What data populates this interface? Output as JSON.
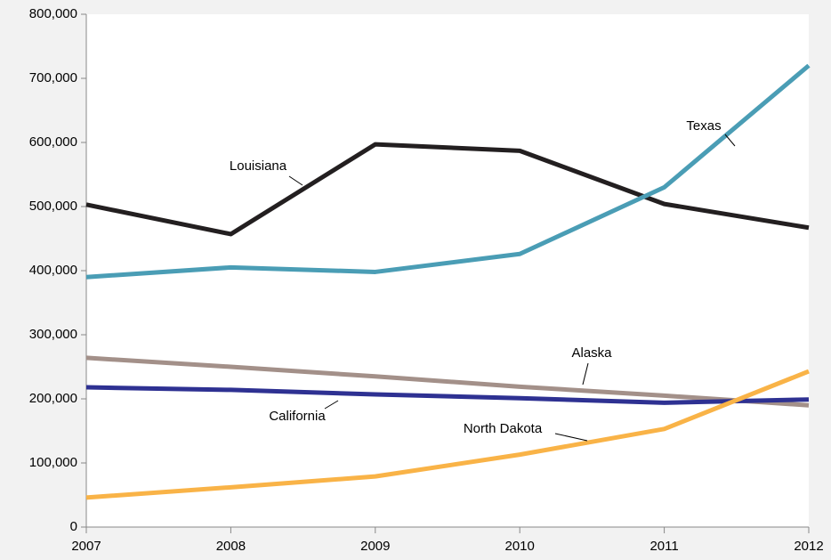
{
  "chart_data": {
    "type": "line",
    "x": [
      2007,
      2008,
      2009,
      2010,
      2011,
      2012
    ],
    "xlim": [
      2007,
      2012
    ],
    "xticks": [
      2007,
      2008,
      2009,
      2010,
      2011,
      2012
    ],
    "ylim": [
      0,
      800000
    ],
    "yticks": [
      {
        "value": 0,
        "label": "0"
      },
      {
        "value": 100000,
        "label": "100,000"
      },
      {
        "value": 200000,
        "label": "200,000"
      },
      {
        "value": 300000,
        "label": "300,000"
      },
      {
        "value": 400000,
        "label": "400,000"
      },
      {
        "value": 500000,
        "label": "500,000"
      },
      {
        "value": 600000,
        "label": "600,000"
      },
      {
        "value": 700000,
        "label": "700,000"
      },
      {
        "value": 800000,
        "label": "800,000"
      }
    ],
    "grid": false,
    "series": [
      {
        "name": "Louisiana",
        "color": "#231f20",
        "values": [
          503000,
          457000,
          597000,
          587000,
          504000,
          467000
        ]
      },
      {
        "name": "Texas",
        "color": "#4a9db5",
        "values": [
          390000,
          405000,
          398000,
          426000,
          530000,
          720000
        ]
      },
      {
        "name": "Alaska",
        "color": "#a39089",
        "values": [
          264000,
          250000,
          235000,
          219000,
          205000,
          190000
        ]
      },
      {
        "name": "California",
        "color": "#2e3192",
        "values": [
          218000,
          214000,
          207000,
          201000,
          194000,
          199000
        ]
      },
      {
        "name": "North Dakota",
        "color": "#f9b347",
        "values": [
          46000,
          62000,
          79000,
          113000,
          153000,
          243000
        ]
      }
    ]
  }
}
